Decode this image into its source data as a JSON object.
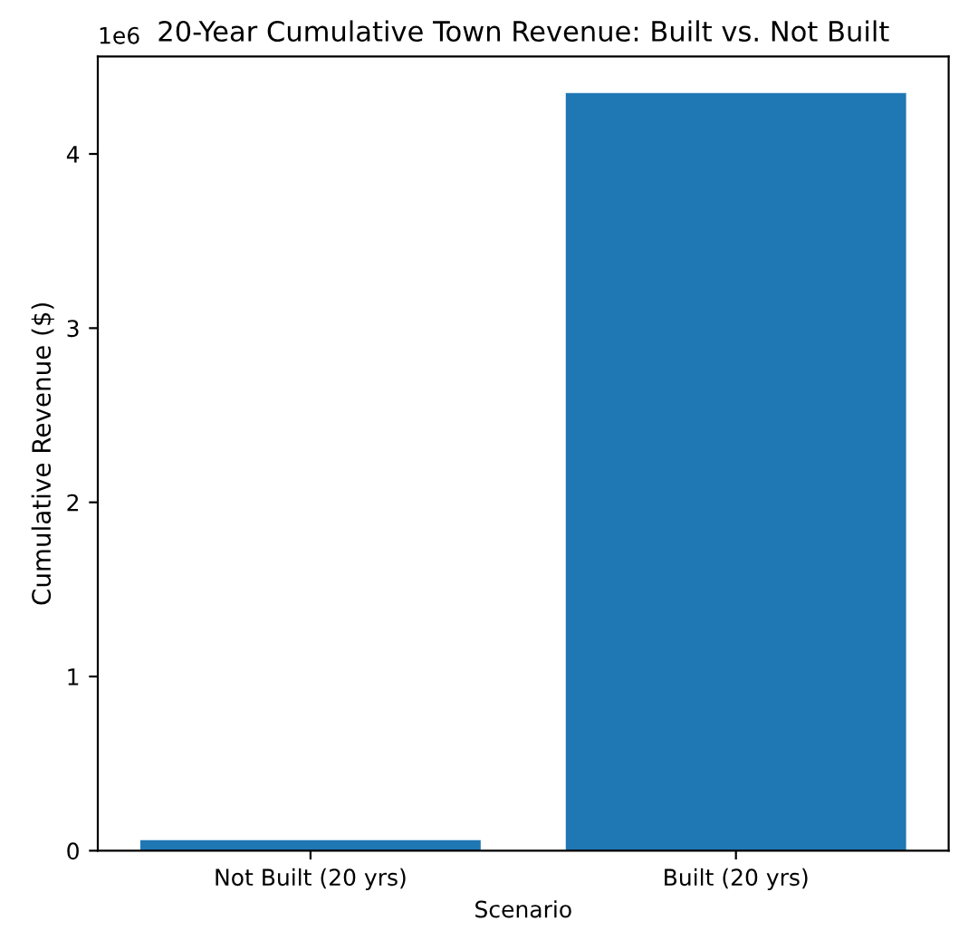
{
  "chart_data": {
    "type": "bar",
    "title": "20-Year Cumulative Town Revenue: Built vs. Not Built",
    "xlabel": "Scenario",
    "ylabel": "Cumulative Revenue ($)",
    "categories": [
      "Not Built (20 yrs)",
      "Built (20 yrs)"
    ],
    "values": [
      0.06,
      4.35
    ],
    "color": "#1f77b4",
    "ylim": [
      0,
      4.56
    ],
    "yticks": [
      0,
      1,
      2,
      3,
      4
    ],
    "annotations": [
      "1e6"
    ]
  }
}
